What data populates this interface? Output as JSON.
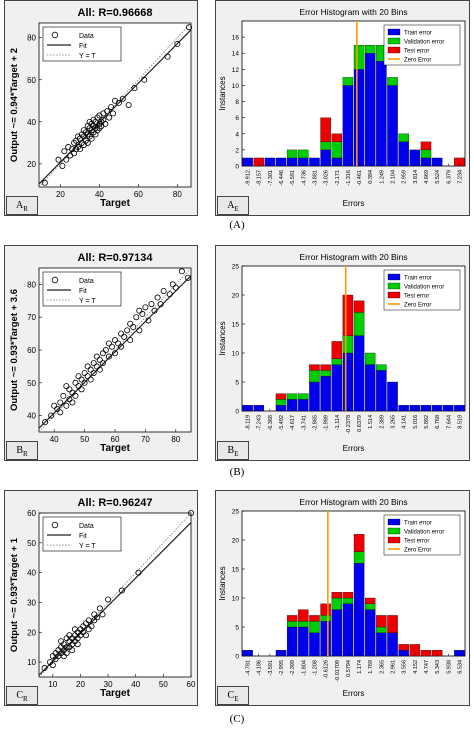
{
  "panels": [
    {
      "caption": "(A)",
      "regression_tag": "A",
      "regression_tag_sub": "R",
      "histogram_tag": "A",
      "histogram_tag_sub": "E",
      "regression": {
        "type": "scatter",
        "title": "All: R=0.96668",
        "xlabel": "Target",
        "ylabel": "Output ~= 0.94*Target + 2",
        "xlim": [
          9,
          87
        ],
        "ylim": [
          9,
          87
        ],
        "xticks": [
          20,
          40,
          60,
          80
        ],
        "yticks": [
          20,
          40,
          60,
          80
        ],
        "legend": [
          "Data",
          "Fit",
          "Y = T"
        ],
        "fit": {
          "slope": 0.94,
          "intercept": 2
        },
        "points": [
          [
            12,
            11
          ],
          [
            19,
            22
          ],
          [
            21,
            19
          ],
          [
            22,
            26
          ],
          [
            23,
            22
          ],
          [
            24,
            28
          ],
          [
            25,
            24
          ],
          [
            26,
            27
          ],
          [
            27,
            30
          ],
          [
            27,
            25
          ],
          [
            28,
            31
          ],
          [
            28,
            27
          ],
          [
            29,
            33
          ],
          [
            29,
            28
          ],
          [
            30,
            32
          ],
          [
            30,
            27
          ],
          [
            31,
            34
          ],
          [
            31,
            30
          ],
          [
            32,
            36
          ],
          [
            32,
            33
          ],
          [
            32,
            29
          ],
          [
            33,
            35
          ],
          [
            33,
            31
          ],
          [
            34,
            38
          ],
          [
            34,
            34
          ],
          [
            34,
            30
          ],
          [
            35,
            37
          ],
          [
            35,
            33
          ],
          [
            35,
            40
          ],
          [
            36,
            36
          ],
          [
            36,
            32
          ],
          [
            36,
            39
          ],
          [
            37,
            38
          ],
          [
            37,
            35
          ],
          [
            37,
            41
          ],
          [
            38,
            37
          ],
          [
            38,
            40
          ],
          [
            38,
            34
          ],
          [
            39,
            36
          ],
          [
            39,
            42
          ],
          [
            40,
            39
          ],
          [
            40,
            37
          ],
          [
            40,
            43
          ],
          [
            41,
            40
          ],
          [
            41,
            38
          ],
          [
            42,
            44
          ],
          [
            42,
            41
          ],
          [
            43,
            39
          ],
          [
            44,
            45
          ],
          [
            45,
            42
          ],
          [
            46,
            47
          ],
          [
            47,
            44
          ],
          [
            48,
            50
          ],
          [
            50,
            49
          ],
          [
            52,
            51
          ],
          [
            55,
            48
          ],
          [
            58,
            56
          ],
          [
            63,
            60
          ],
          [
            75,
            71
          ],
          [
            80,
            77
          ],
          [
            86,
            85
          ]
        ]
      },
      "histogram": {
        "type": "bar",
        "title": "Error Histogram with 20 Bins",
        "xlabel": "Errors",
        "ylabel": "Instances",
        "ylim": [
          0,
          18
        ],
        "yticks": [
          0,
          2,
          4,
          6,
          8,
          10,
          12,
          14,
          16
        ],
        "categories": [
          "-9.912",
          "-8.157",
          "-7.301",
          "-6.446",
          "-5.591",
          "-4.736",
          "-3.881",
          "-3.026",
          "-2.171",
          "-1.316",
          "-0.461",
          "0.394",
          "1.249",
          "2.104",
          "2.959",
          "3.814",
          "4.669",
          "5.524",
          "6.379",
          "7.234"
        ],
        "zero_error_bin": 10.3,
        "series": [
          {
            "name": "Train error",
            "color": "#0000ee",
            "values": [
              1,
              0,
              1,
              1,
              1,
              1,
              1,
              2,
              1,
              10,
              12,
              14,
              13,
              10,
              3,
              2,
              1,
              1,
              0,
              0
            ]
          },
          {
            "name": "Validation error",
            "color": "#00cc00",
            "values": [
              0,
              0,
              0,
              0,
              1,
              1,
              0,
              1,
              2,
              1,
              3,
              1,
              2,
              1,
              1,
              0,
              1,
              0,
              0,
              0
            ]
          },
          {
            "name": "Test error",
            "color": "#ee0000",
            "values": [
              0,
              1,
              0,
              0,
              0,
              0,
              0,
              3,
              1,
              0,
              0,
              0,
              0,
              0,
              0,
              0,
              1,
              0,
              0,
              1
            ]
          }
        ],
        "zero_error_label": "Zero Error"
      }
    },
    {
      "caption": "(B)",
      "regression_tag": "B",
      "regression_tag_sub": "R",
      "histogram_tag": "B",
      "histogram_tag_sub": "E",
      "regression": {
        "type": "scatter",
        "title": "All: R=0.97134",
        "xlabel": "Target",
        "ylabel": "Output ~= 0.93*Target + 3.6",
        "xlim": [
          35,
          85
        ],
        "ylim": [
          35,
          85
        ],
        "xticks": [
          40,
          50,
          60,
          70,
          80
        ],
        "yticks": [
          40,
          50,
          60,
          70,
          80
        ],
        "legend": [
          "Data",
          "Fit",
          "Y = T"
        ],
        "fit": {
          "slope": 0.93,
          "intercept": 3.6
        },
        "points": [
          [
            37,
            38
          ],
          [
            39,
            40
          ],
          [
            40,
            43
          ],
          [
            41,
            42
          ],
          [
            42,
            44
          ],
          [
            42,
            41
          ],
          [
            43,
            46
          ],
          [
            44,
            43
          ],
          [
            44,
            49
          ],
          [
            45,
            45
          ],
          [
            45,
            48
          ],
          [
            46,
            47
          ],
          [
            46,
            44
          ],
          [
            47,
            50
          ],
          [
            47,
            46
          ],
          [
            48,
            49
          ],
          [
            48,
            52
          ],
          [
            49,
            48
          ],
          [
            49,
            51
          ],
          [
            50,
            53
          ],
          [
            50,
            50
          ],
          [
            51,
            52
          ],
          [
            51,
            55
          ],
          [
            52,
            51
          ],
          [
            52,
            54
          ],
          [
            53,
            56
          ],
          [
            53,
            53
          ],
          [
            54,
            55
          ],
          [
            54,
            58
          ],
          [
            55,
            54
          ],
          [
            55,
            57
          ],
          [
            56,
            59
          ],
          [
            56,
            56
          ],
          [
            57,
            60
          ],
          [
            58,
            58
          ],
          [
            58,
            62
          ],
          [
            59,
            61
          ],
          [
            60,
            63
          ],
          [
            60,
            59
          ],
          [
            61,
            62
          ],
          [
            62,
            65
          ],
          [
            62,
            61
          ],
          [
            63,
            64
          ],
          [
            64,
            66
          ],
          [
            65,
            63
          ],
          [
            65,
            68
          ],
          [
            66,
            67
          ],
          [
            67,
            70
          ],
          [
            68,
            66
          ],
          [
            68,
            72
          ],
          [
            69,
            71
          ],
          [
            70,
            73
          ],
          [
            71,
            69
          ],
          [
            72,
            74
          ],
          [
            73,
            72
          ],
          [
            74,
            76
          ],
          [
            75,
            74
          ],
          [
            76,
            78
          ],
          [
            78,
            77
          ],
          [
            79,
            80
          ],
          [
            80,
            79
          ],
          [
            82,
            84
          ],
          [
            84,
            82
          ]
        ]
      },
      "histogram": {
        "type": "bar",
        "title": "Error Histogram with 20 Bins",
        "xlabel": "Errors",
        "ylabel": "Instances",
        "ylim": [
          0,
          25
        ],
        "yticks": [
          0,
          5,
          10,
          15,
          20,
          25
        ],
        "categories": [
          "-8.119",
          "-7.243",
          "-6.368",
          "-5.492",
          "-4.617",
          "-3.741",
          "-2.865",
          "-1.989",
          "-1.114",
          "-0.2378",
          "0.6379",
          "1.514",
          "2.389",
          "3.265",
          "4.141",
          "5.016",
          "5.892",
          "6.768",
          "7.644",
          "8.519"
        ],
        "zero_error_bin": 9.3,
        "series": [
          {
            "name": "Train error",
            "color": "#0000ee",
            "values": [
              1,
              1,
              0,
              1,
              2,
              2,
              5,
              6,
              8,
              10,
              13,
              8,
              7,
              5,
              1,
              1,
              1,
              1,
              1,
              1
            ]
          },
          {
            "name": "Validation error",
            "color": "#00cc00",
            "values": [
              0,
              0,
              0,
              1,
              1,
              1,
              2,
              1,
              1,
              3,
              4,
              2,
              1,
              0,
              0,
              0,
              0,
              0,
              0,
              0
            ]
          },
          {
            "name": "Test error",
            "color": "#ee0000",
            "values": [
              0,
              0,
              0,
              1,
              0,
              0,
              1,
              1,
              3,
              7,
              2,
              0,
              0,
              0,
              0,
              0,
              0,
              0,
              0,
              0
            ]
          }
        ],
        "zero_error_label": "Zero Error"
      }
    },
    {
      "caption": "(C)",
      "regression_tag": "C",
      "regression_tag_sub": "R",
      "histogram_tag": "C",
      "histogram_tag_sub": "E",
      "regression": {
        "type": "scatter",
        "title": "All: R=0.96247",
        "xlabel": "Target",
        "ylabel": "Output ~= 0.93*Target + 1",
        "xlim": [
          5,
          60
        ],
        "ylim": [
          5,
          60
        ],
        "xticks": [
          10,
          20,
          30,
          40,
          50,
          60
        ],
        "yticks": [
          10,
          20,
          30,
          40,
          50,
          60
        ],
        "legend": [
          "Data",
          "Fit",
          "Y = T"
        ],
        "fit": {
          "slope": 0.93,
          "intercept": 1
        },
        "points": [
          [
            7,
            8
          ],
          [
            9,
            10
          ],
          [
            10,
            9
          ],
          [
            10,
            12
          ],
          [
            11,
            13
          ],
          [
            11,
            11
          ],
          [
            12,
            14
          ],
          [
            12,
            12
          ],
          [
            13,
            15
          ],
          [
            13,
            13
          ],
          [
            13,
            17
          ],
          [
            14,
            14
          ],
          [
            14,
            16
          ],
          [
            14,
            12
          ],
          [
            15,
            15
          ],
          [
            15,
            18
          ],
          [
            15,
            13
          ],
          [
            16,
            17
          ],
          [
            16,
            15
          ],
          [
            16,
            19
          ],
          [
            17,
            16
          ],
          [
            17,
            18
          ],
          [
            17,
            14
          ],
          [
            18,
            19
          ],
          [
            18,
            17
          ],
          [
            18,
            21
          ],
          [
            19,
            18
          ],
          [
            19,
            20
          ],
          [
            19,
            16
          ],
          [
            20,
            21
          ],
          [
            20,
            19
          ],
          [
            21,
            22
          ],
          [
            21,
            20
          ],
          [
            22,
            23
          ],
          [
            22,
            19
          ],
          [
            23,
            24
          ],
          [
            23,
            21
          ],
          [
            24,
            22
          ],
          [
            25,
            26
          ],
          [
            25,
            24
          ],
          [
            26,
            25
          ],
          [
            27,
            28
          ],
          [
            28,
            26
          ],
          [
            30,
            31
          ],
          [
            35,
            34
          ],
          [
            41,
            40
          ],
          [
            60,
            60
          ]
        ]
      },
      "histogram": {
        "type": "bar",
        "title": "Error Histogram with 20 Bins",
        "xlabel": "Errors",
        "ylabel": "Instances",
        "ylim": [
          0,
          25
        ],
        "yticks": [
          0,
          5,
          10,
          15,
          20,
          25
        ],
        "categories": [
          "-4.781",
          "-4.186",
          "-3.591",
          "-2.995",
          "-2.399",
          "-1.804",
          "-1.208",
          "-0.6126",
          "-0.01709",
          "0.5794",
          "1.174",
          "1.769",
          "2.365",
          "2.961",
          "3.556",
          "4.152",
          "4.747",
          "5.343",
          "5.938",
          "6.534"
        ],
        "zero_error_bin": 7.7,
        "series": [
          {
            "name": "Train error",
            "color": "#0000ee",
            "values": [
              1,
              0,
              0,
              1,
              5,
              5,
              4,
              6,
              8,
              9,
              16,
              8,
              4,
              4,
              1,
              0,
              0,
              0,
              0,
              1
            ]
          },
          {
            "name": "Validation error",
            "color": "#00cc00",
            "values": [
              0,
              0,
              0,
              0,
              1,
              1,
              2,
              1,
              2,
              1,
              2,
              1,
              1,
              0,
              0,
              0,
              0,
              0,
              0,
              0
            ]
          },
          {
            "name": "Test error",
            "color": "#ee0000",
            "values": [
              0,
              0,
              0,
              0,
              1,
              2,
              1,
              2,
              1,
              1,
              3,
              1,
              2,
              3,
              1,
              2,
              1,
              1,
              0,
              0
            ]
          }
        ],
        "zero_error_label": "Zero Error"
      }
    }
  ]
}
